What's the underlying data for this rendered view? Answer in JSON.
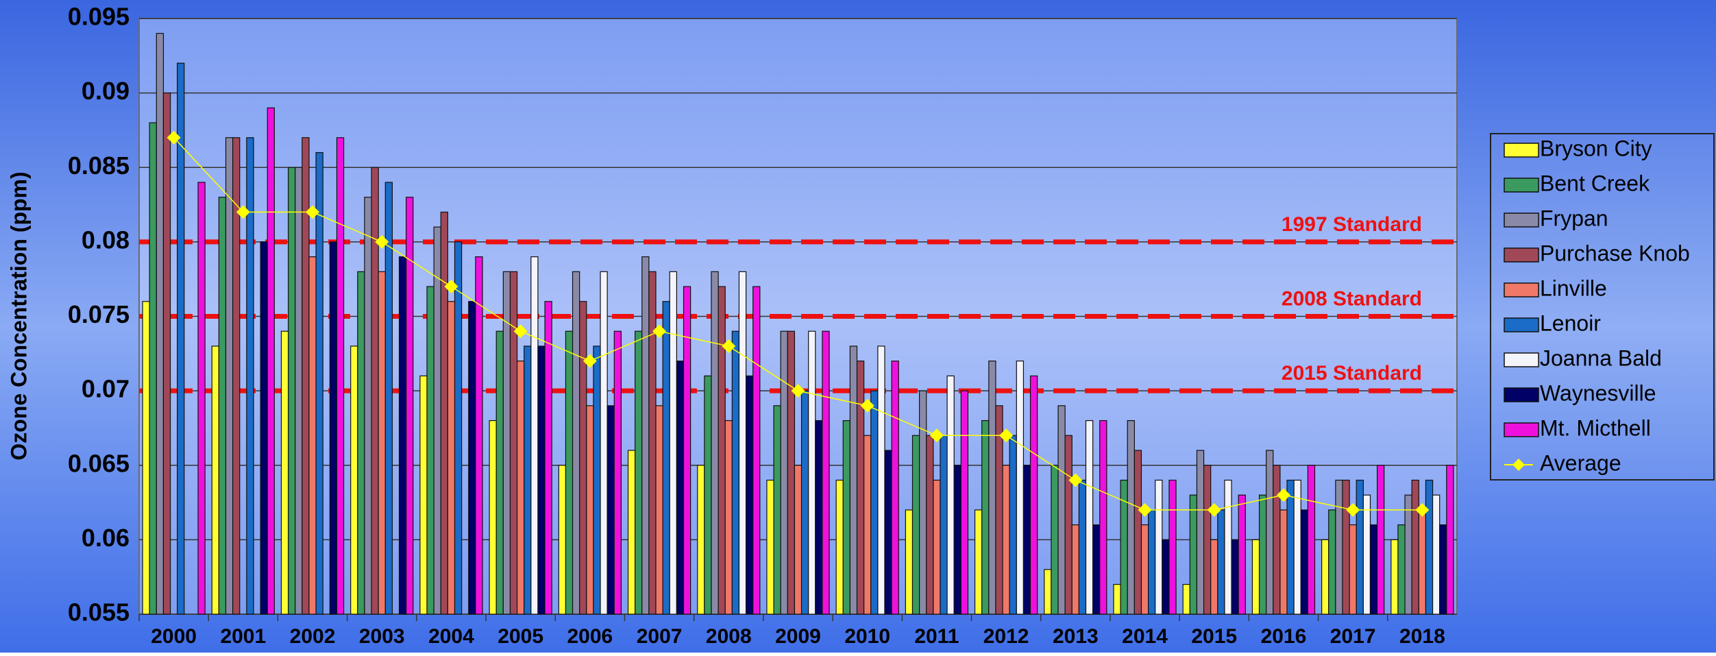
{
  "chart_data": {
    "type": "bar",
    "y_label": "Ozone Concentration (ppm)",
    "categories": [
      "2000",
      "2001",
      "2002",
      "2003",
      "2004",
      "2005",
      "2006",
      "2007",
      "2008",
      "2009",
      "2010",
      "2011",
      "2012",
      "2013",
      "2014",
      "2015",
      "2016",
      "2017",
      "2018"
    ],
    "ylim": [
      0.055,
      0.095
    ],
    "yticks": [
      0.055,
      0.06,
      0.065,
      0.07,
      0.075,
      0.08,
      0.085,
      0.09,
      0.095
    ],
    "grid": true,
    "legend": "right",
    "series": [
      {
        "name": "Bryson City",
        "color": "#ffff33",
        "values": [
          0.076,
          0.073,
          0.074,
          0.073,
          0.071,
          0.068,
          0.065,
          0.066,
          0.065,
          0.064,
          0.064,
          0.062,
          0.062,
          0.058,
          0.057,
          0.057,
          0.06,
          0.06,
          0.06
        ]
      },
      {
        "name": "Bent Creek",
        "color": "#3a9a60",
        "values": [
          0.088,
          0.083,
          0.085,
          0.078,
          0.077,
          0.074,
          0.074,
          0.074,
          0.071,
          0.069,
          0.068,
          0.067,
          0.068,
          0.065,
          0.064,
          0.063,
          0.063,
          0.062,
          0.061
        ]
      },
      {
        "name": "Frypan",
        "color": "#8a8aa8",
        "values": [
          0.094,
          0.087,
          0.085,
          0.083,
          0.081,
          0.078,
          0.078,
          0.079,
          0.078,
          0.074,
          0.073,
          0.07,
          0.072,
          0.069,
          0.068,
          0.066,
          0.066,
          0.064,
          0.063
        ]
      },
      {
        "name": "Purchase Knob",
        "color": "#a04858",
        "values": [
          0.09,
          0.087,
          0.087,
          0.085,
          0.082,
          0.078,
          0.076,
          0.078,
          0.077,
          0.074,
          0.072,
          0.067,
          0.069,
          0.067,
          0.066,
          0.065,
          0.065,
          0.064,
          0.064
        ]
      },
      {
        "name": "Linville",
        "color": "#f07868",
        "values": [
          null,
          null,
          0.079,
          0.078,
          0.076,
          0.072,
          0.069,
          0.069,
          0.068,
          0.065,
          0.067,
          0.064,
          0.065,
          0.061,
          0.061,
          0.06,
          0.062,
          0.061,
          0.062
        ]
      },
      {
        "name": "Lenoir",
        "color": "#1a6cc8",
        "values": [
          0.092,
          0.087,
          0.086,
          0.084,
          0.08,
          0.073,
          0.073,
          0.076,
          0.074,
          0.07,
          0.07,
          0.067,
          0.067,
          0.064,
          0.062,
          0.062,
          0.064,
          0.064,
          0.064
        ]
      },
      {
        "name": "Joanna Bald",
        "color": "#f4f4fc",
        "values": [
          null,
          null,
          null,
          null,
          null,
          0.079,
          0.078,
          0.078,
          0.078,
          0.074,
          0.073,
          0.071,
          0.072,
          0.068,
          0.064,
          0.064,
          0.064,
          0.063,
          0.063
        ]
      },
      {
        "name": "Waynesville",
        "color": "#000066",
        "values": [
          null,
          0.08,
          0.08,
          0.079,
          0.076,
          0.073,
          0.069,
          0.072,
          0.071,
          0.068,
          0.066,
          0.065,
          0.065,
          0.061,
          0.06,
          0.06,
          0.062,
          0.061,
          0.061
        ]
      },
      {
        "name": "Mt. Micthell",
        "color": "#ee11dd",
        "values": [
          0.084,
          0.089,
          0.087,
          0.083,
          0.079,
          0.076,
          0.074,
          0.077,
          0.077,
          0.074,
          0.072,
          0.07,
          0.071,
          0.068,
          0.064,
          0.063,
          0.065,
          0.065,
          0.065
        ]
      },
      {
        "name": "Average",
        "type": "line",
        "color": "#ffff00",
        "values": [
          0.087,
          0.082,
          0.082,
          0.08,
          0.077,
          0.074,
          0.072,
          0.074,
          0.073,
          0.07,
          0.069,
          0.067,
          0.067,
          0.064,
          0.062,
          0.062,
          0.063,
          0.062,
          0.062
        ]
      }
    ],
    "reference_lines": [
      {
        "value": 0.08,
        "label": "1997 Standard",
        "color": "#ee1111"
      },
      {
        "value": 0.075,
        "label": "2008 Standard",
        "color": "#ee1111"
      },
      {
        "value": 0.07,
        "label": "2015 Standard",
        "color": "#ee1111"
      }
    ]
  }
}
